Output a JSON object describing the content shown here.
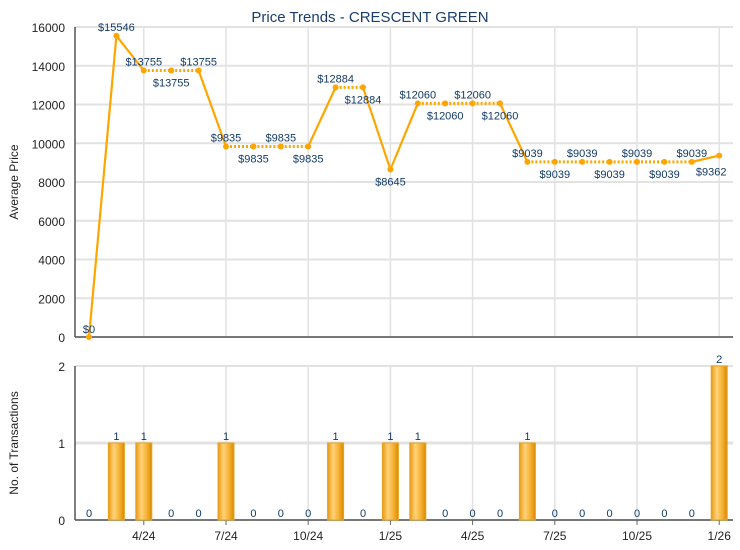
{
  "chart_data": [
    {
      "type": "line",
      "title": "Price Trends - CRESCENT GREEN",
      "ylabel": "Average Price",
      "xlabel": "",
      "ylim": [
        0,
        16000
      ],
      "yticks": [
        0,
        2000,
        4000,
        6000,
        8000,
        10000,
        12000,
        14000,
        16000
      ],
      "xticks": [
        "4/24",
        "7/24",
        "10/24",
        "1/25",
        "4/25",
        "7/25",
        "10/25",
        "1/26"
      ],
      "x": [
        "2/24",
        "3/24",
        "4/24",
        "5/24",
        "6/24",
        "7/24",
        "8/24",
        "9/24",
        "10/24",
        "11/24",
        "12/24",
        "1/25",
        "2/25",
        "3/25",
        "4/25",
        "5/25",
        "6/25",
        "7/25",
        "8/25",
        "9/25",
        "10/25",
        "11/25",
        "12/25",
        "1/26"
      ],
      "values": [
        0,
        15546,
        13755,
        13755,
        13755,
        9835,
        9835,
        9835,
        9835,
        12884,
        12884,
        8645,
        12060,
        12060,
        12060,
        12060,
        9039,
        9039,
        9039,
        9039,
        9039,
        9039,
        9039,
        9362
      ],
      "data_labels": [
        "$0",
        "$15546",
        "$13755",
        "$13755",
        "$13755",
        "$9835",
        "$9835",
        "$9835",
        "$9835",
        "$12884",
        "$12884",
        "$8645",
        "$12060",
        "$12060",
        "$12060",
        "$12060",
        "$9039",
        "$9039",
        "$9039",
        "$9039",
        "$9039",
        "$9039",
        "$9039",
        "$9362"
      ],
      "color": "#ffa500",
      "grid": true
    },
    {
      "type": "bar",
      "ylabel": "No. of Transactions",
      "ylim": [
        0,
        2
      ],
      "yticks": [
        0,
        1,
        2
      ],
      "xticks": [
        "4/24",
        "7/24",
        "10/24",
        "1/25",
        "4/25",
        "7/25",
        "10/25",
        "1/26"
      ],
      "x": [
        "2/24",
        "3/24",
        "4/24",
        "5/24",
        "6/24",
        "7/24",
        "8/24",
        "9/24",
        "10/24",
        "11/24",
        "12/24",
        "1/25",
        "2/25",
        "3/25",
        "4/25",
        "5/25",
        "6/25",
        "7/25",
        "8/25",
        "9/25",
        "10/25",
        "11/25",
        "12/25",
        "1/26"
      ],
      "values": [
        0,
        1,
        1,
        0,
        0,
        1,
        0,
        0,
        0,
        1,
        0,
        1,
        1,
        0,
        0,
        0,
        1,
        0,
        0,
        0,
        0,
        0,
        0,
        2
      ],
      "color": "#f0a818",
      "grid": true
    }
  ]
}
